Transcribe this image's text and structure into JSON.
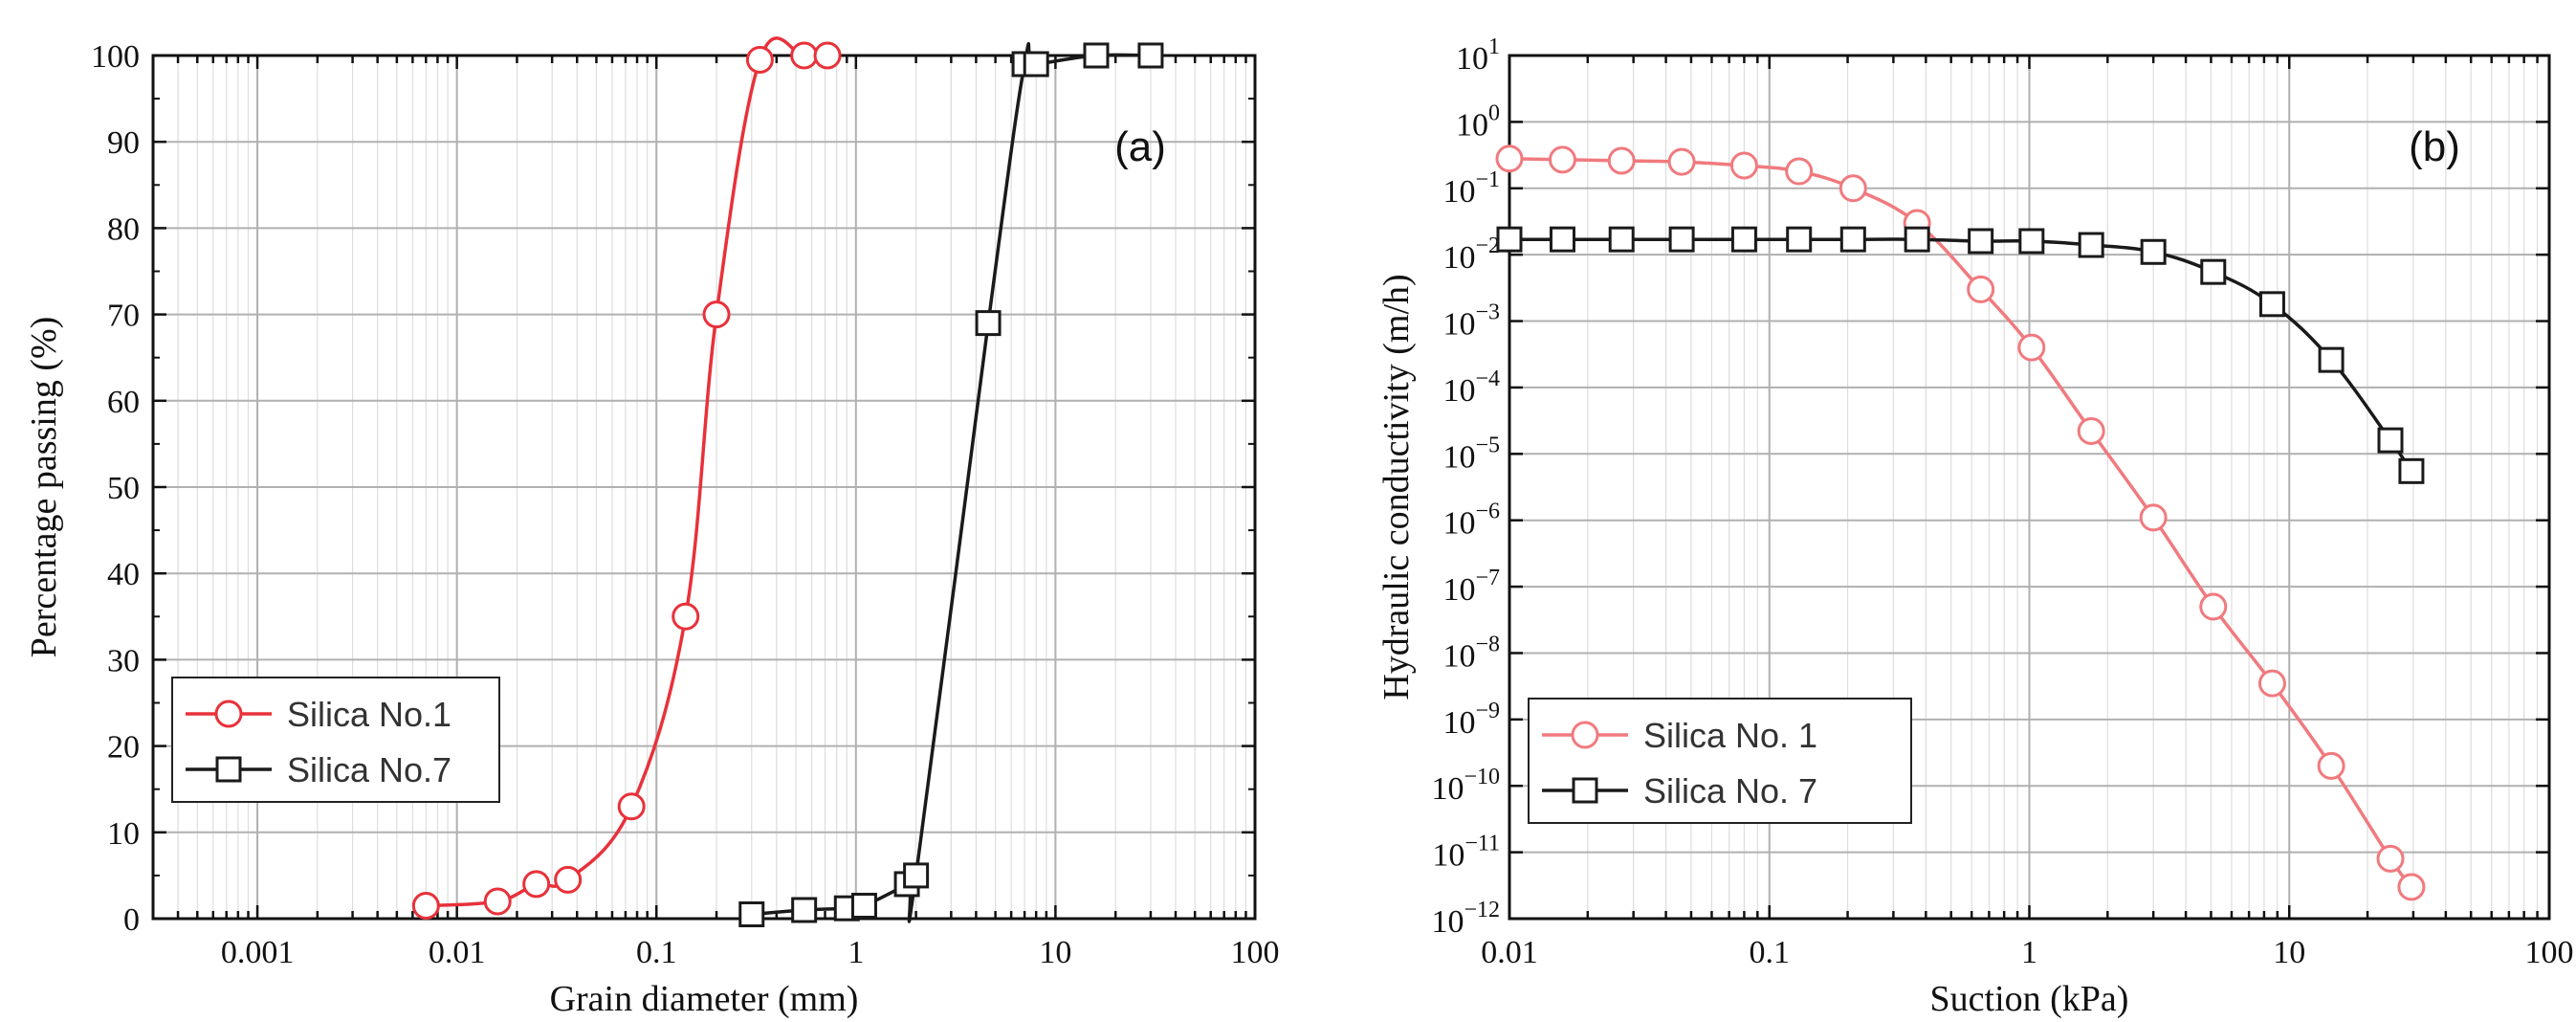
{
  "figure": {
    "background": "#ffffff"
  },
  "chart_data": [
    {
      "panel": "(a)",
      "type": "line",
      "xscale": "log",
      "yscale": "linear",
      "xlabel": "Grain diameter (mm)",
      "ylabel": "Percentage passing (%)",
      "xlim": [
        0.0003,
        100
      ],
      "ylim": [
        0,
        100
      ],
      "xticks": [
        0.001,
        0.01,
        0.1,
        1,
        10,
        100
      ],
      "xtick_labels": [
        "0.001",
        "0.01",
        "0.1",
        "1",
        "10",
        "100"
      ],
      "yticks": [
        0,
        10,
        20,
        30,
        40,
        50,
        60,
        70,
        80,
        90,
        100
      ],
      "ytick_labels": [
        "0",
        "10",
        "20",
        "30",
        "40",
        "50",
        "60",
        "70",
        "80",
        "90",
        "100"
      ],
      "grid": true,
      "legend_position": "lower-left",
      "series": [
        {
          "name": "Silica No.1",
          "color": "#e8313a",
          "marker": "circle",
          "x": [
            0.007,
            0.016,
            0.025,
            0.036,
            0.075,
            0.14,
            0.2,
            0.33,
            0.55,
            0.72
          ],
          "y": [
            1.5,
            2,
            4,
            4.5,
            13,
            35,
            70,
            99.5,
            100,
            100
          ]
        },
        {
          "name": "Silica No.7",
          "color": "#1a1a1a",
          "marker": "square",
          "x": [
            0.3,
            0.55,
            0.9,
            1.1,
            1.8,
            2.0,
            4.6,
            7.0,
            8.0,
            16,
            30
          ],
          "y": [
            0.5,
            1,
            1.2,
            1.5,
            4,
            5,
            69,
            99,
            99,
            100,
            100
          ]
        }
      ]
    },
    {
      "panel": "(b)",
      "type": "line",
      "xscale": "log",
      "yscale": "log",
      "xlabel": "Suction (kPa)",
      "ylabel": "Hydraulic conductivity (m/h)",
      "xlim": [
        0.01,
        100
      ],
      "ylim": [
        1e-12,
        10
      ],
      "xticks": [
        0.01,
        0.1,
        1,
        10,
        100
      ],
      "xtick_labels": [
        "0.01",
        "0.1",
        "1",
        "10",
        "100"
      ],
      "ytick_exponents": [
        1,
        0,
        -1,
        -2,
        -3,
        -4,
        -5,
        -6,
        -7,
        -8,
        -9,
        -10,
        -11,
        -12
      ],
      "ytick_base": "10",
      "grid": true,
      "legend_position": "lower-left",
      "series": [
        {
          "name": "Silica No. 1",
          "color": "#f07a7e",
          "marker": "circle",
          "x": [
            0.01,
            0.016,
            0.027,
            0.046,
            0.08,
            0.13,
            0.21,
            0.37,
            0.65,
            1.02,
            1.73,
            3.0,
            5.1,
            8.6,
            14.5,
            24.5,
            29.5
          ],
          "y": [
            0.28,
            0.27,
            0.26,
            0.25,
            0.22,
            0.18,
            0.1,
            0.03,
            0.003,
            0.0004,
            2.2e-05,
            1.1e-06,
            5e-08,
            3.5e-09,
            2e-10,
            8e-12,
            3e-12
          ]
        },
        {
          "name": "Silica No. 7",
          "color": "#1a1a1a",
          "marker": "square",
          "x": [
            0.01,
            0.016,
            0.027,
            0.046,
            0.08,
            0.13,
            0.21,
            0.37,
            0.65,
            1.02,
            1.73,
            3.0,
            5.1,
            8.6,
            14.5,
            24.5,
            29.5
          ],
          "y": [
            0.017,
            0.017,
            0.017,
            0.017,
            0.017,
            0.017,
            0.017,
            0.017,
            0.016,
            0.016,
            0.014,
            0.011,
            0.0055,
            0.0018,
            0.00026,
            1.6e-05,
            5.5e-06
          ]
        }
      ]
    }
  ]
}
